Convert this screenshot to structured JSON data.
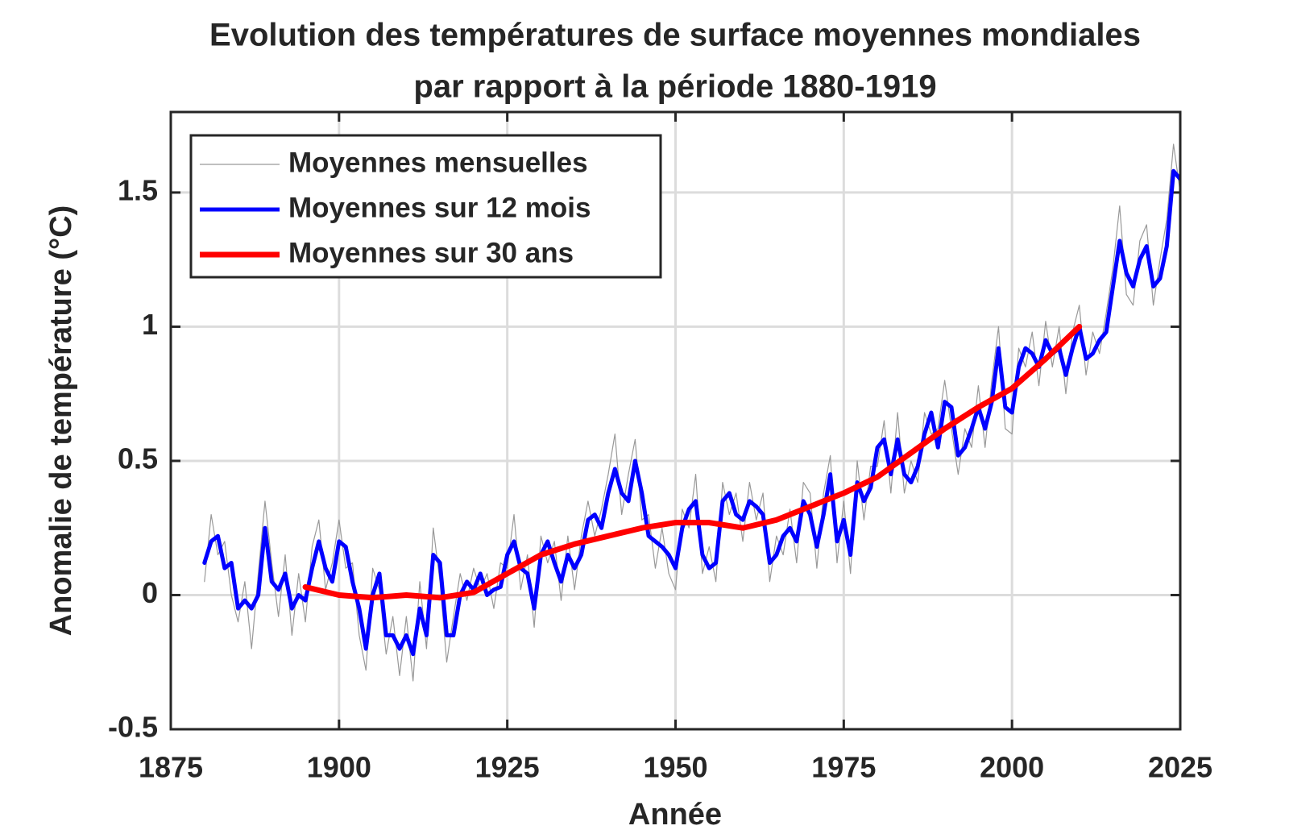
{
  "chart_data": {
    "type": "line",
    "title": [
      "Evolution des températures de surface moyennes mondiales",
      "par rapport à la période 1880-1919"
    ],
    "xlabel": "Année",
    "ylabel": "Anomalie de température (°C)",
    "xlim": [
      1875,
      2025
    ],
    "xticks": [
      1875,
      1900,
      1925,
      1950,
      1975,
      2000,
      2025
    ],
    "ylim": [
      -0.5,
      1.8
    ],
    "yticks": [
      -0.5,
      0,
      0.5,
      1,
      1.5
    ],
    "grid": true,
    "legend": "upper left",
    "x": [
      1880,
      1881,
      1882,
      1883,
      1884,
      1885,
      1886,
      1887,
      1888,
      1889,
      1890,
      1891,
      1892,
      1893,
      1894,
      1895,
      1896,
      1897,
      1898,
      1899,
      1900,
      1901,
      1902,
      1903,
      1904,
      1905,
      1906,
      1907,
      1908,
      1909,
      1910,
      1911,
      1912,
      1913,
      1914,
      1915,
      1916,
      1917,
      1918,
      1919,
      1920,
      1921,
      1922,
      1923,
      1924,
      1925,
      1926,
      1927,
      1928,
      1929,
      1930,
      1931,
      1932,
      1933,
      1934,
      1935,
      1936,
      1937,
      1938,
      1939,
      1940,
      1941,
      1942,
      1943,
      1944,
      1945,
      1946,
      1947,
      1948,
      1949,
      1950,
      1951,
      1952,
      1953,
      1954,
      1955,
      1956,
      1957,
      1958,
      1959,
      1960,
      1961,
      1962,
      1963,
      1964,
      1965,
      1966,
      1967,
      1968,
      1969,
      1970,
      1971,
      1972,
      1973,
      1974,
      1975,
      1976,
      1977,
      1978,
      1979,
      1980,
      1981,
      1982,
      1983,
      1984,
      1985,
      1986,
      1987,
      1988,
      1989,
      1990,
      1991,
      1992,
      1993,
      1994,
      1995,
      1996,
      1997,
      1998,
      1999,
      2000,
      2001,
      2002,
      2003,
      2004,
      2005,
      2006,
      2007,
      2008,
      2009,
      2010,
      2011,
      2012,
      2013,
      2014,
      2015,
      2016,
      2017,
      2018,
      2019,
      2020,
      2021,
      2022,
      2023,
      2024,
      2025
    ],
    "series": [
      {
        "name": "Moyennes mensuelles",
        "color": "#999999",
        "width": 1.2,
        "values": [
          0.05,
          0.3,
          0.15,
          0.2,
          0,
          -0.1,
          0.05,
          -0.2,
          0.08,
          0.35,
          0.12,
          -0.08,
          0.15,
          -0.15,
          0.08,
          -0.1,
          0.18,
          0.28,
          0.02,
          0.12,
          0.28,
          0.1,
          0.12,
          -0.15,
          -0.28,
          0.1,
          0.02,
          -0.22,
          -0.08,
          -0.3,
          -0.08,
          -0.32,
          0.05,
          -0.2,
          0.25,
          0.05,
          -0.25,
          -0.08,
          0.08,
          -0.02,
          0.1,
          0.02,
          0.08,
          -0.05,
          0.12,
          0.1,
          0.3,
          0.02,
          0.15,
          -0.12,
          0.22,
          0.12,
          0.2,
          -0.02,
          0.22,
          0.02,
          0.22,
          0.35,
          0.22,
          0.32,
          0.45,
          0.6,
          0.3,
          0.45,
          0.58,
          0.28,
          0.3,
          0.1,
          0.25,
          0.08,
          0.02,
          0.32,
          0.25,
          0.45,
          0.08,
          0.18,
          0.05,
          0.42,
          0.3,
          0.38,
          0.2,
          0.42,
          0.28,
          0.38,
          0.05,
          0.22,
          0.15,
          0.32,
          0.12,
          0.42,
          0.38,
          0.1,
          0.38,
          0.52,
          0.12,
          0.35,
          0.08,
          0.5,
          0.28,
          0.48,
          0.48,
          0.65,
          0.38,
          0.68,
          0.38,
          0.5,
          0.42,
          0.68,
          0.6,
          0.62,
          0.8,
          0.62,
          0.45,
          0.62,
          0.55,
          0.78,
          0.55,
          0.8,
          1.0,
          0.62,
          0.6,
          0.92,
          0.85,
          0.98,
          0.78,
          1.02,
          0.85,
          1.0,
          0.75,
          0.98,
          1.08,
          0.82,
          0.98,
          0.9,
          1.05,
          1.22,
          1.45,
          1.12,
          1.08,
          1.32,
          1.38,
          1.08,
          1.25,
          1.4,
          1.68,
          1.5
        ]
      },
      {
        "name": "Moyennes sur 12 mois",
        "color": "#0000ff",
        "width": 5,
        "values": [
          0.12,
          0.2,
          0.22,
          0.1,
          0.12,
          -0.05,
          -0.02,
          -0.05,
          0,
          0.25,
          0.05,
          0.02,
          0.08,
          -0.05,
          0,
          -0.02,
          0.1,
          0.2,
          0.1,
          0.05,
          0.2,
          0.18,
          0.05,
          -0.05,
          -0.2,
          0,
          0.08,
          -0.15,
          -0.15,
          -0.2,
          -0.15,
          -0.22,
          -0.05,
          -0.15,
          0.15,
          0.12,
          -0.15,
          -0.15,
          0,
          0.05,
          0.02,
          0.08,
          0,
          0.02,
          0.03,
          0.15,
          0.2,
          0.1,
          0.08,
          -0.05,
          0.15,
          0.2,
          0.12,
          0.05,
          0.15,
          0.1,
          0.15,
          0.28,
          0.3,
          0.25,
          0.38,
          0.47,
          0.38,
          0.35,
          0.5,
          0.38,
          0.22,
          0.2,
          0.18,
          0.15,
          0.1,
          0.25,
          0.32,
          0.35,
          0.15,
          0.1,
          0.12,
          0.35,
          0.38,
          0.3,
          0.28,
          0.35,
          0.33,
          0.3,
          0.12,
          0.15,
          0.22,
          0.25,
          0.2,
          0.35,
          0.3,
          0.18,
          0.3,
          0.45,
          0.2,
          0.28,
          0.15,
          0.42,
          0.35,
          0.4,
          0.55,
          0.58,
          0.45,
          0.58,
          0.45,
          0.42,
          0.48,
          0.6,
          0.68,
          0.55,
          0.72,
          0.7,
          0.52,
          0.55,
          0.62,
          0.7,
          0.62,
          0.72,
          0.92,
          0.7,
          0.68,
          0.85,
          0.92,
          0.9,
          0.85,
          0.95,
          0.9,
          0.92,
          0.82,
          0.92,
          1.0,
          0.88,
          0.9,
          0.95,
          0.98,
          1.15,
          1.32,
          1.2,
          1.15,
          1.25,
          1.3,
          1.15,
          1.18,
          1.3,
          1.58,
          1.55
        ]
      },
      {
        "name": "Moyennes sur 30 ans",
        "color": "#ff0000",
        "width": 7,
        "x": [
          1895,
          1900,
          1905,
          1910,
          1915,
          1920,
          1925,
          1930,
          1935,
          1940,
          1945,
          1950,
          1955,
          1960,
          1965,
          1970,
          1975,
          1980,
          1985,
          1990,
          1995,
          2000,
          2005,
          2010
        ],
        "values": [
          0.03,
          0,
          -0.01,
          0,
          -0.01,
          0.01,
          0.08,
          0.15,
          0.19,
          0.22,
          0.25,
          0.27,
          0.27,
          0.25,
          0.28,
          0.33,
          0.38,
          0.44,
          0.53,
          0.62,
          0.7,
          0.77,
          0.88,
          1.0
        ]
      }
    ]
  }
}
